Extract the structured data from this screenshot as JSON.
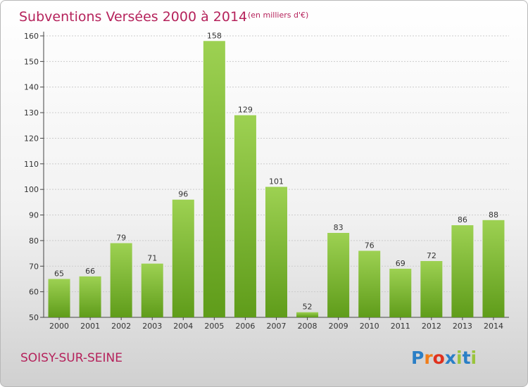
{
  "header": {
    "title": "Subventions Versées 2000 à 2014",
    "subtitle": "(en milliers d'€)"
  },
  "footer": {
    "commune": "SOISY-SUR-SEINE",
    "logo_text": "Proxiti"
  },
  "colors": {
    "bar_light": "#9dd152",
    "bar_dark": "#5f9c1a",
    "accent": "#b5225b",
    "grid": "#cccccc"
  },
  "chart_data": {
    "type": "bar",
    "title": "Subventions Versées 2000 à 2014",
    "subtitle": "(en milliers d'€)",
    "xlabel": "",
    "ylabel": "",
    "categories": [
      "2000",
      "2001",
      "2002",
      "2003",
      "2004",
      "2005",
      "2006",
      "2007",
      "2008",
      "2009",
      "2010",
      "2011",
      "2012",
      "2013",
      "2014"
    ],
    "values": [
      65,
      66,
      79,
      71,
      96,
      158,
      129,
      101,
      52,
      83,
      76,
      69,
      72,
      86,
      88
    ],
    "ylim": [
      50,
      160
    ],
    "yticks": [
      50,
      60,
      70,
      80,
      90,
      100,
      110,
      120,
      130,
      140,
      150,
      160
    ],
    "grid": true,
    "legend": "none"
  }
}
